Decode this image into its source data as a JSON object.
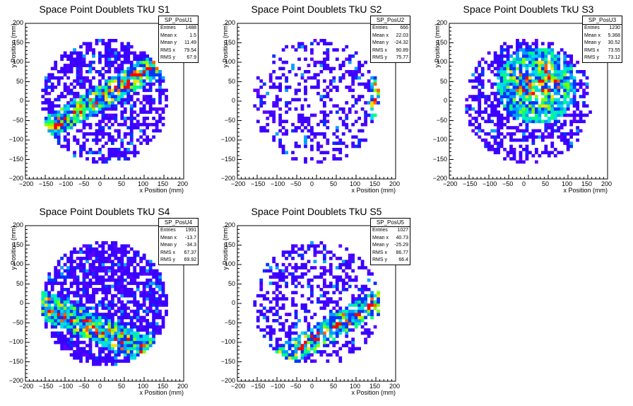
{
  "chart_data": [
    {
      "type": "heatmap",
      "title": "Space Point Doublets TkU S1",
      "xlabel": "x Position (mm)",
      "ylabel": "y Position (mm)",
      "xlim": [
        -200,
        200
      ],
      "ylim": [
        -200,
        200
      ],
      "xticks": [
        "−200",
        "−150",
        "−100",
        "−50",
        "0",
        "50",
        "100",
        "150",
        "200"
      ],
      "yticks": [
        "200",
        "150",
        "100",
        "50",
        "0",
        "−50",
        "−100",
        "−150",
        "−200"
      ],
      "stats": {
        "name": "SP_PosU1",
        "rows": [
          {
            "label": "Entries",
            "value": "1488"
          },
          {
            "label": "Mean x",
            "value": "1.5"
          },
          {
            "label": "Mean y",
            "value": "11.49"
          },
          {
            "label": "RMS x",
            "value": "79.54"
          },
          {
            "label": "RMS y",
            "value": "67.9"
          }
        ]
      },
      "radius_mm": 160,
      "fill_fraction": 0.55,
      "band": {
        "orientation": "diagonal-up",
        "center": [
          0,
          15
        ],
        "width_mm": 30
      }
    },
    {
      "type": "heatmap",
      "title": "Space Point Doublets TkU S2",
      "xlabel": "x Position (mm)",
      "ylabel": "y Position (mm)",
      "xlim": [
        -200,
        200
      ],
      "ylim": [
        -200,
        200
      ],
      "xticks": [
        "−200",
        "−150",
        "−100",
        "−50",
        "0",
        "50",
        "100",
        "150",
        "200"
      ],
      "yticks": [
        "200",
        "150",
        "100",
        "50",
        "0",
        "−50",
        "−100",
        "−150",
        "−200"
      ],
      "stats": {
        "name": "SP_PosU2",
        "rows": [
          {
            "label": "Entries",
            "value": "666"
          },
          {
            "label": "Mean x",
            "value": "22.03"
          },
          {
            "label": "Mean y",
            "value": "-24.32"
          },
          {
            "label": "RMS x",
            "value": "90.89"
          },
          {
            "label": "RMS y",
            "value": "75.77"
          }
        ]
      },
      "radius_mm": 160,
      "fill_fraction": 0.3,
      "band": {
        "orientation": "right-edge",
        "center": [
          150,
          0
        ],
        "width_mm": 20
      }
    },
    {
      "type": "heatmap",
      "title": "Space Point Doublets TkU S3",
      "xlabel": "x Position (mm)",
      "ylabel": "y Position (mm)",
      "xlim": [
        -200,
        200
      ],
      "ylim": [
        -200,
        200
      ],
      "xticks": [
        "−200",
        "−150",
        "−100",
        "−50",
        "0",
        "50",
        "100",
        "150",
        "200"
      ],
      "yticks": [
        "200",
        "150",
        "100",
        "50",
        "0",
        "−50",
        "−100",
        "−150",
        "−200"
      ],
      "stats": {
        "name": "SP_PosU3",
        "rows": [
          {
            "label": "Entries",
            "value": "1230"
          },
          {
            "label": "Mean x",
            "value": "5.368"
          },
          {
            "label": "Mean y",
            "value": "30.52"
          },
          {
            "label": "RMS x",
            "value": "73.55"
          },
          {
            "label": "RMS y",
            "value": "73.12"
          }
        ]
      },
      "radius_mm": 160,
      "fill_fraction": 0.5,
      "band": {
        "orientation": "diffuse",
        "center": [
          20,
          40
        ],
        "width_mm": 60
      }
    },
    {
      "type": "heatmap",
      "title": "Space Point Doublets TkU S4",
      "xlabel": "x Position (mm)",
      "ylabel": "y Position (mm)",
      "xlim": [
        -200,
        200
      ],
      "ylim": [
        -200,
        200
      ],
      "xticks": [
        "−200",
        "−150",
        "−100",
        "−50",
        "0",
        "50",
        "100",
        "150",
        "200"
      ],
      "yticks": [
        "200",
        "150",
        "100",
        "50",
        "0",
        "−50",
        "−100",
        "−150",
        "−200"
      ],
      "stats": {
        "name": "SP_PosU4",
        "rows": [
          {
            "label": "Entries",
            "value": "1991"
          },
          {
            "label": "Mean x",
            "value": "-13.7"
          },
          {
            "label": "Mean y",
            "value": "-34.3"
          },
          {
            "label": "RMS x",
            "value": "67.37"
          },
          {
            "label": "RMS y",
            "value": "69.92"
          }
        ]
      },
      "radius_mm": 160,
      "fill_fraction": 0.72,
      "band": {
        "orientation": "diagonal-down",
        "center": [
          -30,
          -60
        ],
        "width_mm": 35
      }
    },
    {
      "type": "heatmap",
      "title": "Space Point Doublets TkU S5",
      "xlabel": "x Position (mm)",
      "ylabel": "y Position (mm)",
      "xlim": [
        -200,
        200
      ],
      "ylim": [
        -200,
        200
      ],
      "xticks": [
        "−200",
        "−150",
        "−100",
        "−50",
        "0",
        "50",
        "100",
        "150",
        "200"
      ],
      "yticks": [
        "200",
        "150",
        "100",
        "50",
        "0",
        "−50",
        "−100",
        "−150",
        "−200"
      ],
      "stats": {
        "name": "SP_PosU5",
        "rows": [
          {
            "label": "Entries",
            "value": "1027"
          },
          {
            "label": "Mean x",
            "value": "40.73"
          },
          {
            "label": "Mean y",
            "value": "-25.29"
          },
          {
            "label": "RMS x",
            "value": "86.77"
          },
          {
            "label": "RMS y",
            "value": "66.4"
          }
        ]
      },
      "radius_mm": 160,
      "fill_fraction": 0.42,
      "band": {
        "orientation": "diagonal-up",
        "center": [
          80,
          -40
        ],
        "width_mm": 30
      }
    }
  ],
  "palette": [
    "#3b00ff",
    "#5a00ff",
    "#0033ff",
    "#00a0ff",
    "#00e0e0",
    "#00ff80",
    "#80ff00",
    "#ffe000",
    "#ff6000",
    "#ff0000"
  ]
}
